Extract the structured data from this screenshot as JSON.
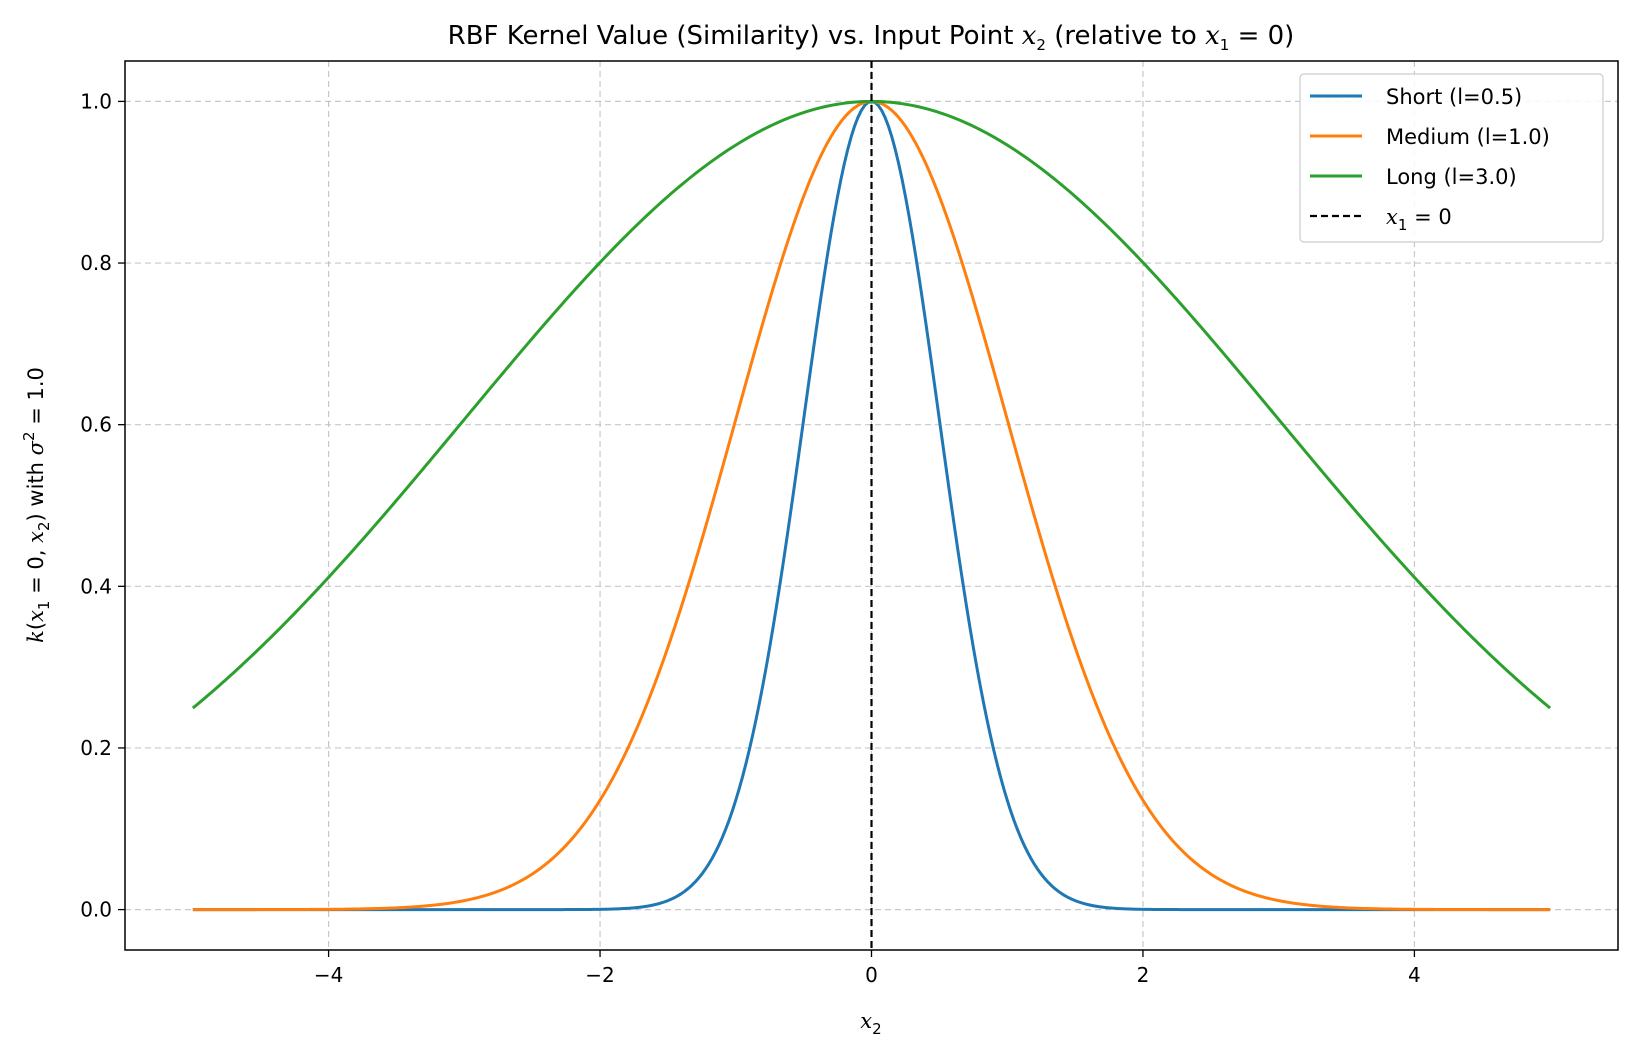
{
  "chart_data": {
    "type": "line",
    "title": {
      "prefix": "RBF Kernel Value (Similarity) vs. Input Point ",
      "var": "x",
      "var_sub": "2",
      "middle": " (relative to ",
      "ref": "x",
      "ref_sub": "1",
      "ref_eq": " = 0",
      "suffix": ")"
    },
    "xlabel": {
      "var": "x",
      "sub": "2"
    },
    "ylabel": {
      "fn": "k",
      "open": "(",
      "a": "x",
      "a_sub": "1",
      "a_eq": " = 0, ",
      "b": "x",
      "b_sub": "2",
      "close": ")",
      "with": " with ",
      "s": "σ",
      "s_sup": "2",
      "s_eq": " = 1.0"
    },
    "xlim": [
      -5.5,
      5.5
    ],
    "ylim": [
      -0.05,
      1.05
    ],
    "x_range": [
      -5,
      5
    ],
    "x_samples": 401,
    "xticks": [
      -4,
      -2,
      0,
      2,
      4
    ],
    "xtick_labels": [
      "−4",
      "−2",
      "0",
      "2",
      "4"
    ],
    "yticks": [
      0.0,
      0.2,
      0.4,
      0.6,
      0.8,
      1.0
    ],
    "ytick_labels": [
      "0.0",
      "0.2",
      "0.4",
      "0.6",
      "0.8",
      "1.0"
    ],
    "grid": true,
    "legend_position": "top-right",
    "function": "exp(-x^2 / (2 l^2))",
    "series": [
      {
        "name": "Short (l=0.5)",
        "lengthscale": 0.5,
        "color": "#1f77b4"
      },
      {
        "name": "Medium (l=1.0)",
        "lengthscale": 1.0,
        "color": "#ff7f0e"
      },
      {
        "name": "Long (l=3.0)",
        "lengthscale": 3.0,
        "color": "#2ca02c"
      }
    ],
    "reference_line": {
      "x": 0,
      "color": "#000000",
      "style": "dashed",
      "label": {
        "var": "x",
        "sub": "1",
        "eq": " = 0"
      }
    }
  }
}
